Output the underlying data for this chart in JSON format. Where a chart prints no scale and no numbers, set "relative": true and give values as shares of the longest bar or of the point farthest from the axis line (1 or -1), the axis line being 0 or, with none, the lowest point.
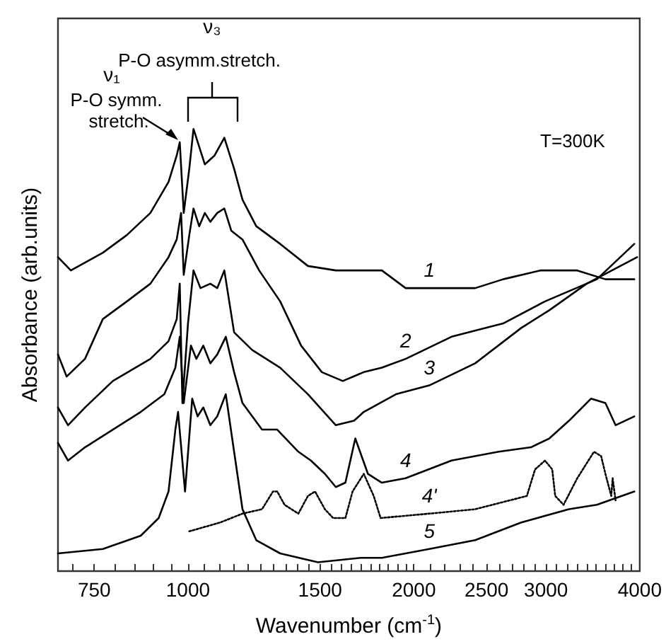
{
  "chart_data": {
    "type": "line",
    "xlabel": "Wavenumber (cm$^{-1}$)",
    "ylabel": "Absorbance (arb.units)",
    "relative": true,
    "log": "x",
    "xlim": [
      671,
      4000
    ],
    "xticks": [
      {
        "value": 700,
        "label": null
      },
      750,
      {
        "value": 800,
        "label": null
      },
      {
        "value": 850,
        "label": null
      },
      {
        "value": 900,
        "label": null
      },
      {
        "value": 950,
        "label": null
      },
      1000,
      {
        "value": 1050,
        "label": null
      },
      {
        "value": 1100,
        "label": null
      },
      {
        "value": 1150,
        "label": null
      },
      {
        "value": 1200,
        "label": null
      },
      {
        "value": 1250,
        "label": null
      },
      {
        "value": 1300,
        "label": null
      },
      {
        "value": 1350,
        "label": null
      },
      {
        "value": 1400,
        "label": null
      },
      {
        "value": 1450,
        "label": null
      },
      1500,
      {
        "value": 1550,
        "label": null
      },
      {
        "value": 1600,
        "label": null
      },
      {
        "value": 1650,
        "label": null
      },
      {
        "value": 1700,
        "label": null
      },
      {
        "value": 1750,
        "label": null
      },
      {
        "value": 1800,
        "label": null
      },
      {
        "value": 1850,
        "label": null
      },
      {
        "value": 1900,
        "label": null
      },
      {
        "value": 1950,
        "label": null
      },
      2000,
      {
        "value": 2100,
        "label": null
      },
      {
        "value": 2200,
        "label": null
      },
      {
        "value": 2300,
        "label": null
      },
      {
        "value": 2400,
        "label": null
      },
      2500,
      {
        "value": 2600,
        "label": null
      },
      {
        "value": 2700,
        "label": null
      },
      {
        "value": 2800,
        "label": null
      },
      {
        "value": 2900,
        "label": null
      },
      3000,
      {
        "value": 3100,
        "label": null
      },
      {
        "value": 3200,
        "label": null
      },
      {
        "value": 3300,
        "label": null
      },
      {
        "value": 3400,
        "label": null
      },
      {
        "value": 3500,
        "label": null
      },
      {
        "value": 3600,
        "label": null
      },
      {
        "value": 3700,
        "label": null
      },
      {
        "value": 3800,
        "label": null
      },
      {
        "value": 3900,
        "label": null
      },
      4000
    ],
    "annotations": [
      "ν₁",
      "P-O symm. stretch.",
      "ν₃",
      "P-O asymm.stretch.",
      "T=300K"
    ],
    "legend": false,
    "grid": false,
    "marker": "none",
    "line_style": "solid",
    "series": [
      {
        "name": "1",
        "color": "#000000",
        "x": [
          671,
          698,
          770,
          829,
          891,
          942,
          966,
          975,
          987,
          1004,
          1017,
          1053,
          1085,
          1118,
          1152,
          1182,
          1233,
          1327,
          1445,
          1574,
          1715,
          1813,
          1950,
          2097,
          2414,
          2630,
          2950,
          3302,
          3600,
          3934
        ],
        "values": [
          0.71,
          0.68,
          0.72,
          0.76,
          0.81,
          0.88,
          0.94,
          0.97,
          0.81,
          0.91,
          1.0,
          0.92,
          0.94,
          0.98,
          0.91,
          0.84,
          0.78,
          0.74,
          0.69,
          0.68,
          0.68,
          0.68,
          0.64,
          0.64,
          0.64,
          0.66,
          0.68,
          0.68,
          0.66,
          0.66
        ]
      },
      {
        "name": "2",
        "color": "#000000",
        "x": [
          671,
          689,
          729,
          770,
          829,
          891,
          942,
          966,
          979,
          987,
          1004,
          1017,
          1035,
          1053,
          1071,
          1094,
          1118,
          1142,
          1182,
          1244,
          1327,
          1415,
          1508,
          1608,
          1715,
          1813,
          1950,
          2245,
          2630,
          2991,
          3507,
          3934
        ],
        "values": [
          0.49,
          0.44,
          0.48,
          0.57,
          0.61,
          0.65,
          0.71,
          0.75,
          0.81,
          0.67,
          0.76,
          0.82,
          0.78,
          0.81,
          0.79,
          0.81,
          0.82,
          0.77,
          0.75,
          0.68,
          0.61,
          0.51,
          0.45,
          0.43,
          0.45,
          0.46,
          0.48,
          0.53,
          0.56,
          0.61,
          0.66,
          0.74
        ]
      },
      {
        "name": "3",
        "color": "#000000",
        "x": [
          671,
          692,
          729,
          794,
          891,
          942,
          966,
          975,
          983,
          1000,
          1017,
          1039,
          1071,
          1094,
          1118,
          1152,
          1218,
          1327,
          1445,
          1574,
          1664,
          1715,
          1893,
          2097,
          2414,
          2781,
          3031,
          3399,
          3968
        ],
        "values": [
          0.37,
          0.33,
          0.37,
          0.43,
          0.48,
          0.52,
          0.57,
          0.65,
          0.38,
          0.56,
          0.68,
          0.64,
          0.65,
          0.64,
          0.68,
          0.54,
          0.5,
          0.46,
          0.4,
          0.33,
          0.34,
          0.36,
          0.4,
          0.42,
          0.47,
          0.55,
          0.59,
          0.65,
          0.71
        ]
      },
      {
        "name": "4",
        "color": "#000000",
        "x": [
          671,
          692,
          729,
          794,
          865,
          930,
          962,
          975,
          987,
          1009,
          1026,
          1048,
          1071,
          1094,
          1123,
          1152,
          1182,
          1255,
          1315,
          1403,
          1458,
          1522,
          1574,
          1621,
          1671,
          1737,
          1813,
          1950,
          2245,
          2595,
          2864,
          3031,
          3219,
          3444,
          3600,
          3714,
          3934
        ],
        "values": [
          0.29,
          0.25,
          0.28,
          0.32,
          0.36,
          0.4,
          0.46,
          0.53,
          0.38,
          0.51,
          0.48,
          0.51,
          0.47,
          0.49,
          0.53,
          0.45,
          0.38,
          0.32,
          0.32,
          0.27,
          0.25,
          0.22,
          0.19,
          0.2,
          0.3,
          0.22,
          0.2,
          0.21,
          0.25,
          0.27,
          0.28,
          0.3,
          0.34,
          0.39,
          0.38,
          0.33,
          0.35
        ]
      },
      {
        "name": "4'",
        "color": "#000000",
        "line_style": "dotted",
        "x": [
          1004,
          1104,
          1182,
          1255,
          1298,
          1315,
          1345,
          1403,
          1445,
          1477,
          1522,
          1561,
          1621,
          1657,
          1715,
          1768,
          1806,
          2097,
          2414,
          2829,
          2901,
          2991,
          3058,
          3086,
          3166,
          3302,
          3476,
          3553,
          3600,
          3665,
          3681,
          3714
        ],
        "values": [
          0.09,
          0.11,
          0.13,
          0.14,
          0.18,
          0.18,
          0.15,
          0.13,
          0.17,
          0.18,
          0.14,
          0.12,
          0.12,
          0.18,
          0.22,
          0.17,
          0.12,
          0.13,
          0.14,
          0.17,
          0.23,
          0.25,
          0.23,
          0.17,
          0.15,
          0.21,
          0.27,
          0.26,
          0.22,
          0.17,
          0.21,
          0.16
        ]
      },
      {
        "name": "5",
        "color": "#000000",
        "x": [
          671,
          770,
          865,
          914,
          942,
          962,
          970,
          991,
          1013,
          1030,
          1048,
          1071,
          1094,
          1123,
          1152,
          1182,
          1233,
          1327,
          1490,
          1700,
          1813,
          2097,
          2414,
          2781,
          3219,
          3507,
          3934
        ],
        "values": [
          0.04,
          0.05,
          0.08,
          0.12,
          0.18,
          0.32,
          0.36,
          0.18,
          0.39,
          0.35,
          0.37,
          0.33,
          0.35,
          0.4,
          0.27,
          0.14,
          0.07,
          0.04,
          0.02,
          0.03,
          0.03,
          0.05,
          0.07,
          0.11,
          0.14,
          0.15,
          0.18
        ]
      }
    ]
  }
}
